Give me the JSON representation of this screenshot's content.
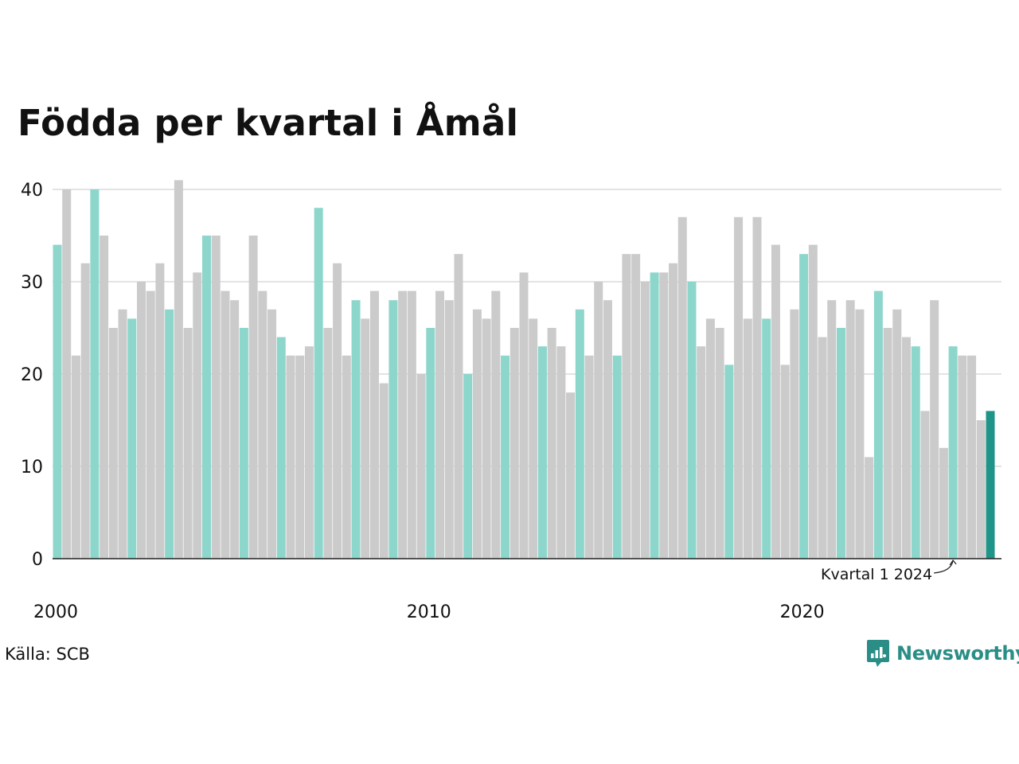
{
  "title": "Födda per kvartal i Åmål",
  "source": "Källa: SCB",
  "brand": {
    "name": "Newsworthy",
    "icon": "newsworthy-logo-icon"
  },
  "colors": {
    "q1": "#8dd6cc",
    "other": "#cbcbcb",
    "latest": "#1f9488",
    "grid": "#e3e3e3",
    "axis": "#222222",
    "brand": "#2a8e86"
  },
  "chart_data": {
    "type": "bar",
    "title": "Födda per kvartal i Åmål",
    "xlabel": "",
    "ylabel": "",
    "ylim": [
      0,
      40
    ],
    "yticks": [
      "0",
      "10",
      "20",
      "30",
      "40"
    ],
    "xticks": [
      {
        "label": "2000",
        "year": 2000
      },
      {
        "label": "2010",
        "year": 2010
      },
      {
        "label": "2020",
        "year": 2020
      }
    ],
    "grid": true,
    "first_period": {
      "year": 2000,
      "quarter": 1
    },
    "highlight": "Quarter 1 of each year highlighted; latest quarter emphasized",
    "annotation": {
      "label": "Kvartal 1 2024",
      "year": 2024,
      "quarter": 1
    },
    "series": [
      {
        "values": [
          34,
          40,
          22,
          32,
          40,
          35,
          25,
          27,
          26,
          30,
          29,
          32,
          27,
          41,
          25,
          31,
          35,
          35,
          29,
          28,
          25,
          35,
          29,
          27,
          24,
          22,
          22,
          23,
          38,
          25,
          32,
          22,
          28,
          26,
          29,
          19,
          28,
          29,
          29,
          20,
          25,
          29,
          28,
          33,
          20,
          27,
          26,
          29,
          22,
          25,
          31,
          26,
          23,
          25,
          23,
          18,
          27,
          22,
          30,
          28,
          22,
          33,
          33,
          30,
          31,
          31,
          32,
          37,
          30,
          23,
          26,
          25,
          21,
          37,
          26,
          37,
          26,
          34,
          21,
          27,
          33,
          34,
          24,
          28,
          25,
          28,
          27,
          11,
          29,
          25,
          27,
          24,
          23,
          16,
          28,
          12,
          23,
          22,
          22,
          15,
          16
        ]
      }
    ]
  }
}
